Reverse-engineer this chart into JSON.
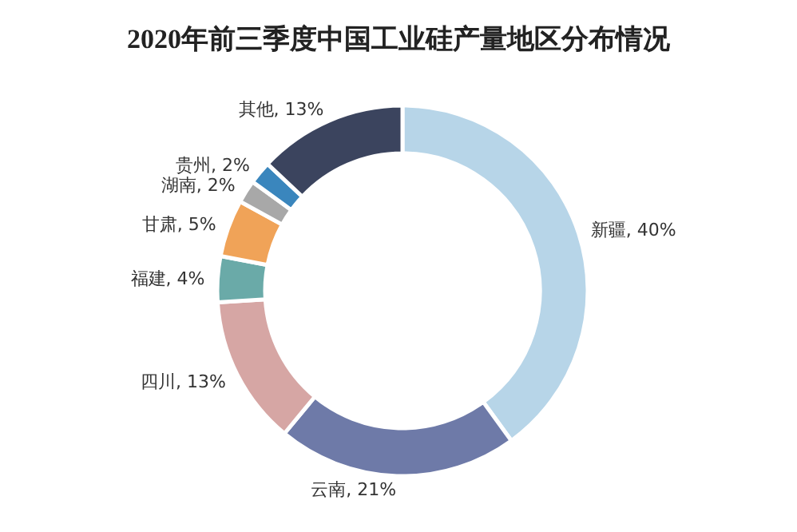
{
  "chart_data": {
    "type": "donut",
    "title": "2020年前三季度中国工业硅产量地区分布情况",
    "categories": [
      "新疆",
      "云南",
      "四川",
      "福建",
      "甘肃",
      "湖南",
      "贵州",
      "其他"
    ],
    "values": [
      40,
      21,
      13,
      4,
      5,
      2,
      2,
      13
    ],
    "colors": [
      "#b7d5e8",
      "#6e7aa8",
      "#d6a6a4",
      "#6aaaa8",
      "#f0a358",
      "#a8a8a8",
      "#3a86bd",
      "#3b445e"
    ],
    "value_labels": [
      ", 40%",
      ", 21%",
      ", 13%",
      ", 4%",
      ", 5%",
      ", 2%",
      ", 2%",
      ", 13%"
    ]
  }
}
